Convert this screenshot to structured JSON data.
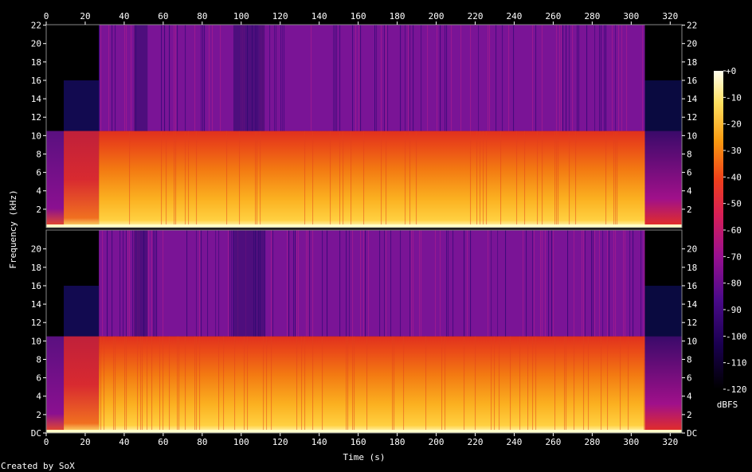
{
  "chart_data": {
    "type": "heatmap",
    "title": "",
    "xlabel": "Time (s)",
    "ylabel": "Frequency (kHz)",
    "xlim": [
      0,
      326
    ],
    "ylim_khz": [
      0,
      22.05
    ],
    "x_ticks": [
      "0",
      "20",
      "40",
      "60",
      "80",
      "100",
      "120",
      "140",
      "160",
      "180",
      "200",
      "220",
      "240",
      "260",
      "280",
      "300",
      "320"
    ],
    "y_ticks_top": [
      "2",
      "4",
      "6",
      "8",
      "10",
      "12",
      "14",
      "16",
      "18",
      "20",
      "22"
    ],
    "y_ticks_bottom": [
      "DC",
      "2",
      "4",
      "6",
      "8",
      "10",
      "12",
      "14",
      "16",
      "18",
      "20"
    ],
    "channels": [
      {
        "name": "",
        "intro_end_s": 27,
        "music_end_s": 307,
        "lowpass_khz": 10.5
      },
      {
        "name": "",
        "intro_end_s": 27,
        "music_end_s": 307,
        "lowpass_khz": 10.5
      }
    ],
    "colorbar": {
      "unit": "dBFS",
      "range": [
        -120,
        0
      ],
      "ticks": [
        "+0",
        "-10",
        "-20",
        "-30",
        "-40",
        "-50",
        "-60",
        "-70",
        "-80",
        "-90",
        "-100",
        "-110",
        "-120"
      ],
      "colors": [
        "#000000",
        "#2a0060",
        "#6a0a9a",
        "#b41284",
        "#e52a2a",
        "#f56a0a",
        "#ffc828",
        "#ffffe6"
      ]
    },
    "footer": "Created by SoX"
  }
}
